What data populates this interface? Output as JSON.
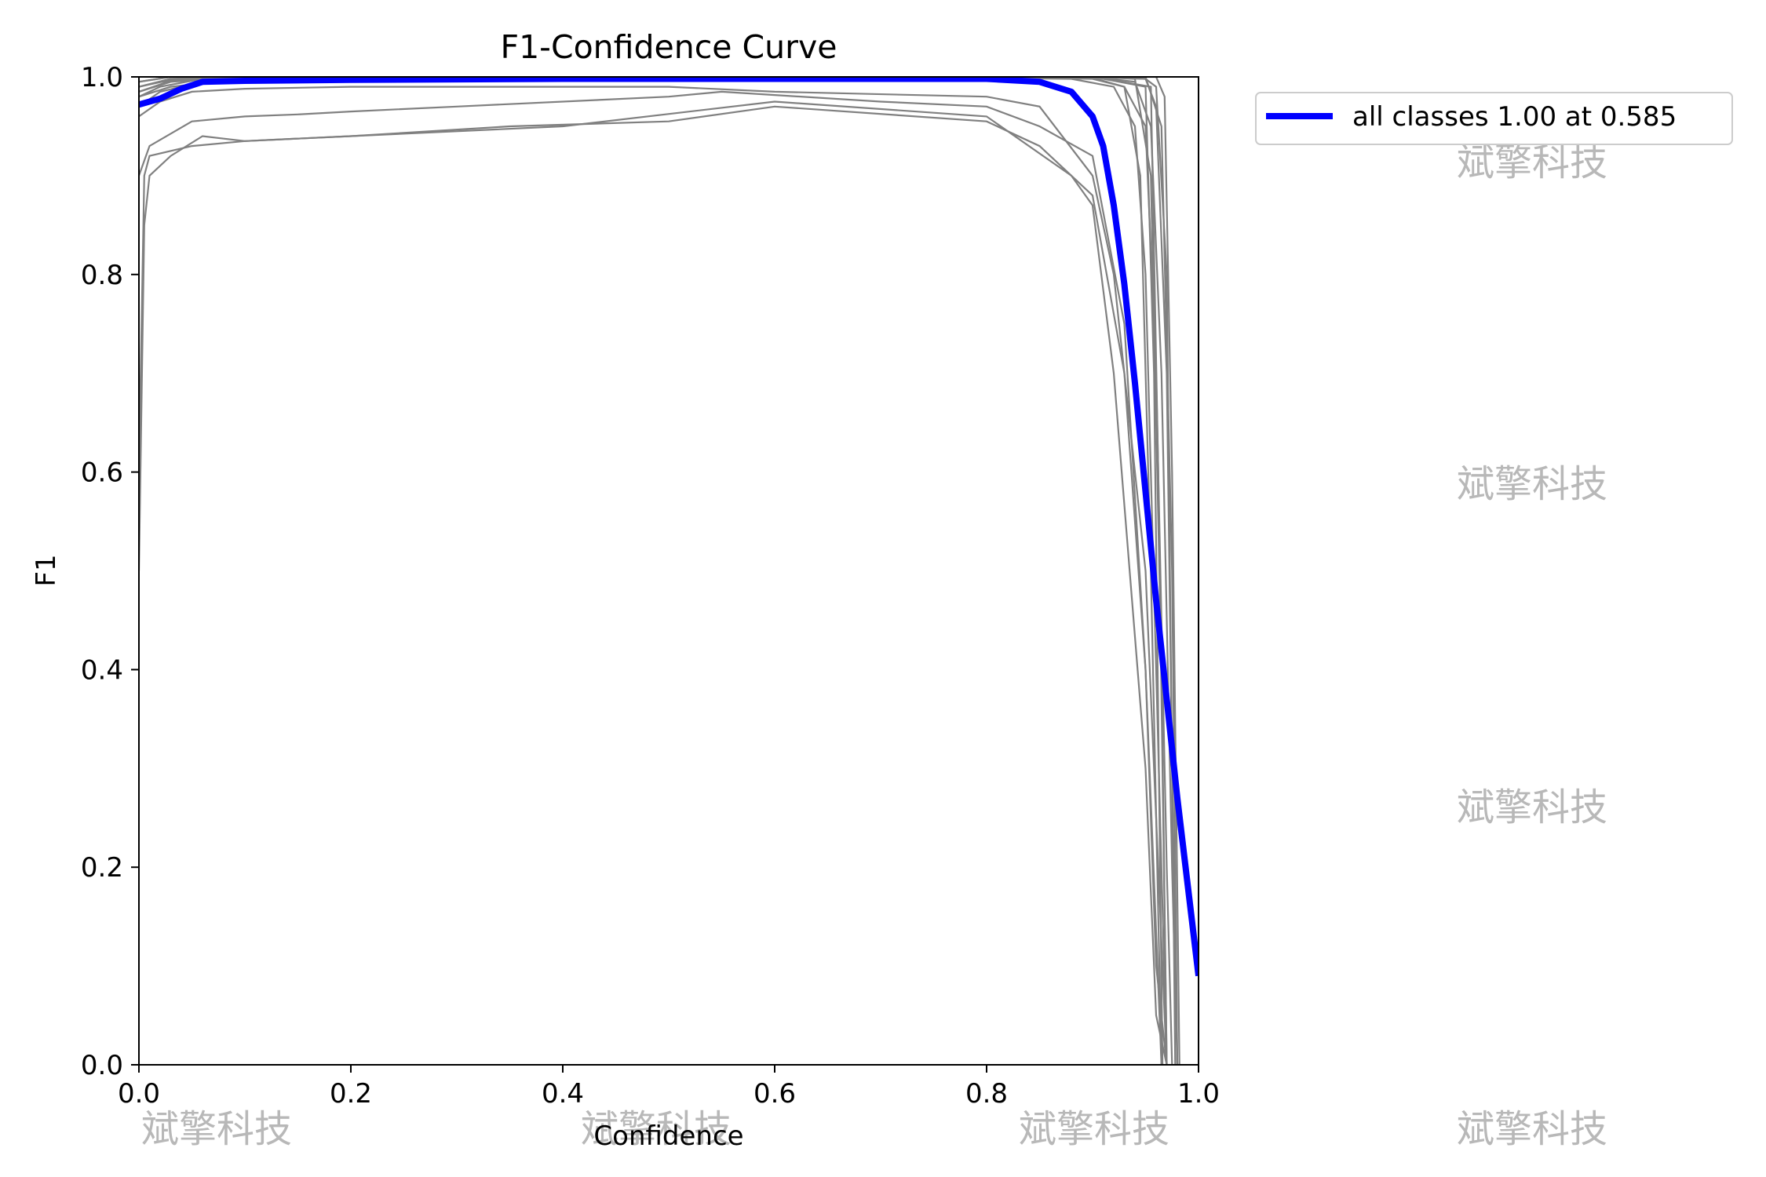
{
  "colors": {
    "class_curves": "#808080",
    "all_classes": "#0000ff",
    "watermark": "#b3b3b3",
    "axes": "#000000"
  },
  "watermark_text": "斌擎科技",
  "chart_data": {
    "type": "line",
    "title": "F1-Confidence Curve",
    "xlabel": "Confidence",
    "ylabel": "F1",
    "xlim": [
      0.0,
      1.0
    ],
    "ylim": [
      0.0,
      1.0
    ],
    "xticks": [
      "0.0",
      "0.2",
      "0.4",
      "0.6",
      "0.8",
      "1.0"
    ],
    "yticks": [
      "0.0",
      "0.2",
      "0.4",
      "0.6",
      "0.8",
      "1.0"
    ],
    "grid": false,
    "legend_position": "outside-upper-right",
    "legend": [
      "all classes 1.00 at 0.585"
    ],
    "series": [
      {
        "name": "all classes 1.00 at 0.585",
        "role": "mean",
        "x": [
          0.0,
          0.02,
          0.04,
          0.06,
          0.1,
          0.2,
          0.4,
          0.585,
          0.8,
          0.85,
          0.88,
          0.9,
          0.91,
          0.92,
          0.93,
          0.94,
          0.95,
          0.96,
          0.97,
          0.98,
          0.99,
          1.0
        ],
        "y": [
          0.972,
          0.978,
          0.988,
          0.995,
          0.996,
          0.997,
          0.998,
          0.998,
          0.998,
          0.995,
          0.985,
          0.96,
          0.93,
          0.87,
          0.79,
          0.69,
          0.58,
          0.47,
          0.37,
          0.27,
          0.18,
          0.09
        ]
      }
    ],
    "class_curves": [
      {
        "x": [
          0.0,
          0.005,
          0.01,
          0.05,
          0.1,
          0.2,
          0.4,
          0.6,
          0.8,
          0.88,
          0.9,
          0.92,
          0.95,
          0.96,
          0.97
        ],
        "y": [
          0.6,
          0.9,
          0.92,
          0.93,
          0.935,
          0.94,
          0.95,
          0.975,
          0.96,
          0.9,
          0.87,
          0.7,
          0.3,
          0.05,
          0.0
        ]
      },
      {
        "x": [
          0.0,
          0.005,
          0.01,
          0.03,
          0.06,
          0.1,
          0.2,
          0.35,
          0.5,
          0.6,
          0.8,
          0.85,
          0.9,
          0.93,
          0.95,
          0.96,
          0.97
        ],
        "y": [
          0.5,
          0.85,
          0.9,
          0.92,
          0.94,
          0.935,
          0.94,
          0.95,
          0.955,
          0.97,
          0.955,
          0.93,
          0.88,
          0.7,
          0.4,
          0.1,
          0.0
        ]
      },
      {
        "x": [
          0.0,
          0.01,
          0.05,
          0.1,
          0.15,
          0.2,
          0.3,
          0.5,
          0.55,
          0.7,
          0.8,
          0.85,
          0.9,
          0.93,
          0.95,
          0.965
        ],
        "y": [
          0.9,
          0.93,
          0.955,
          0.96,
          0.962,
          0.965,
          0.97,
          0.98,
          0.985,
          0.975,
          0.97,
          0.95,
          0.92,
          0.75,
          0.4,
          0.0
        ]
      },
      {
        "x": [
          0.0,
          0.02,
          0.05,
          0.1,
          0.2,
          0.3,
          0.5,
          0.6,
          0.8,
          0.85,
          0.9,
          0.92,
          0.95,
          0.97
        ],
        "y": [
          0.96,
          0.975,
          0.985,
          0.988,
          0.99,
          0.99,
          0.99,
          0.985,
          0.98,
          0.97,
          0.9,
          0.8,
          0.5,
          0.0
        ]
      },
      {
        "x": [
          0.0,
          0.02,
          0.06,
          0.2,
          0.5,
          0.8,
          0.88,
          0.92,
          0.94,
          0.95,
          0.96,
          0.97
        ],
        "y": [
          0.97,
          0.985,
          0.995,
          0.998,
          0.999,
          0.999,
          0.998,
          0.99,
          0.95,
          0.8,
          0.4,
          0.0
        ]
      },
      {
        "x": [
          0.0,
          0.02,
          0.06,
          0.2,
          0.5,
          0.8,
          0.9,
          0.93,
          0.95,
          0.96,
          0.97,
          0.975
        ],
        "y": [
          0.98,
          0.99,
          0.998,
          0.999,
          1.0,
          1.0,
          0.998,
          0.99,
          0.95,
          0.7,
          0.2,
          0.0
        ]
      },
      {
        "x": [
          0.0,
          0.02,
          0.06,
          0.2,
          0.5,
          0.8,
          0.9,
          0.94,
          0.955,
          0.965,
          0.975,
          0.98
        ],
        "y": [
          0.99,
          0.995,
          0.999,
          1.0,
          1.0,
          1.0,
          1.0,
          0.995,
          0.95,
          0.7,
          0.2,
          0.0
        ]
      },
      {
        "x": [
          0.0,
          0.03,
          0.1,
          0.5,
          0.9,
          0.95,
          0.96,
          0.97,
          0.975,
          0.98
        ],
        "y": [
          0.99,
          0.998,
          1.0,
          1.0,
          1.0,
          0.998,
          0.97,
          0.7,
          0.3,
          0.0
        ]
      },
      {
        "x": [
          0.0,
          0.03,
          0.1,
          0.5,
          0.9,
          0.95,
          0.965,
          0.975,
          0.98
        ],
        "y": [
          0.995,
          1.0,
          1.0,
          1.0,
          1.0,
          1.0,
          0.95,
          0.5,
          0.0
        ]
      },
      {
        "x": [
          0.0,
          0.03,
          0.1,
          0.5,
          0.9,
          0.94,
          0.955,
          0.965,
          0.97
        ],
        "y": [
          0.985,
          0.995,
          1.0,
          1.0,
          1.0,
          0.998,
          0.9,
          0.4,
          0.0
        ]
      },
      {
        "x": [
          0.0,
          0.03,
          0.1,
          0.5,
          0.9,
          0.93,
          0.945,
          0.955,
          0.965
        ],
        "y": [
          0.98,
          0.99,
          0.998,
          0.999,
          0.999,
          0.99,
          0.9,
          0.5,
          0.0
        ]
      },
      {
        "x": [
          0.0,
          0.03,
          0.1,
          0.5,
          0.9,
          0.95,
          0.96,
          0.97,
          0.978
        ],
        "y": [
          0.99,
          0.997,
          1.0,
          1.0,
          1.0,
          0.998,
          0.99,
          0.8,
          0.0
        ]
      },
      {
        "x": [
          0.0,
          0.03,
          0.1,
          0.5,
          0.9,
          0.96,
          0.968,
          0.975,
          0.982
        ],
        "y": [
          0.995,
          1.0,
          1.0,
          1.0,
          1.0,
          1.0,
          0.98,
          0.6,
          0.0
        ]
      },
      {
        "x": [
          0.0,
          0.03,
          0.1,
          0.5,
          0.9,
          0.955,
          0.962,
          0.97
        ],
        "y": [
          0.99,
          0.998,
          1.0,
          1.0,
          1.0,
          0.99,
          0.6,
          0.0
        ]
      },
      {
        "x": [
          0.0,
          0.03,
          0.1,
          0.5,
          0.9,
          0.95,
          0.958,
          0.966
        ],
        "y": [
          0.985,
          0.996,
          1.0,
          1.0,
          1.0,
          0.99,
          0.7,
          0.0
        ]
      }
    ]
  }
}
